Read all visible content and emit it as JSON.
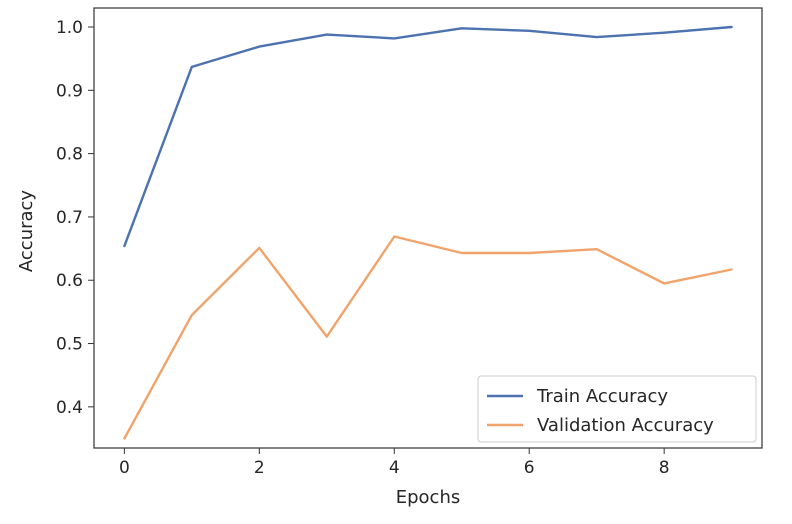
{
  "chart_data": {
    "type": "line",
    "title": "",
    "xlabel": "Epochs",
    "ylabel": "Accuracy",
    "xlim": [
      -0.45,
      9.45
    ],
    "ylim": [
      0.335,
      1.03
    ],
    "x_ticks": [
      0,
      2,
      4,
      6,
      8
    ],
    "y_ticks": [
      0.4,
      0.5,
      0.6,
      0.7,
      0.8,
      0.9,
      1.0
    ],
    "x_tick_labels": [
      "0",
      "2",
      "4",
      "6",
      "8"
    ],
    "y_tick_labels": [
      "0.4",
      "0.5",
      "0.6",
      "0.7",
      "0.8",
      "0.9",
      "1.0"
    ],
    "grid": false,
    "legend_position": "lower-right",
    "x": [
      0,
      1,
      2,
      3,
      4,
      5,
      6,
      7,
      8,
      9
    ],
    "series": [
      {
        "name": "Train Accuracy",
        "color": "#4c72b0",
        "values": [
          0.654,
          0.937,
          0.969,
          0.988,
          0.982,
          0.998,
          0.994,
          0.984,
          0.991,
          1.0
        ]
      },
      {
        "name": "Validation Accuracy",
        "color": "#f0a46c",
        "values": [
          0.35,
          0.545,
          0.651,
          0.511,
          0.669,
          0.643,
          0.643,
          0.649,
          0.595,
          0.617
        ]
      }
    ]
  }
}
